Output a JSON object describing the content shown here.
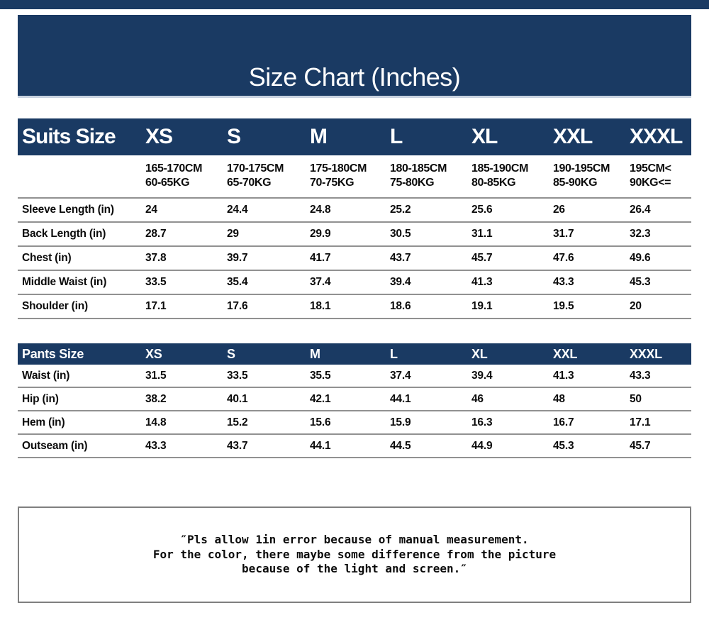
{
  "page": {
    "title": "Size Chart (Inches)"
  },
  "colors": {
    "navy": "#1a3a63",
    "separator": "#919191",
    "note_border": "#7f7f7f"
  },
  "suits_table": {
    "header_label": "Suits Size",
    "sizes": [
      "XS",
      "S",
      "M",
      "L",
      "XL",
      "XXL",
      "XXXL"
    ],
    "ranges": [
      {
        "height": "165-170CM",
        "weight": "60-65KG"
      },
      {
        "height": "170-175CM",
        "weight": "65-70KG"
      },
      {
        "height": "175-180CM",
        "weight": "70-75KG"
      },
      {
        "height": "180-185CM",
        "weight": "75-80KG"
      },
      {
        "height": "185-190CM",
        "weight": "80-85KG"
      },
      {
        "height": "190-195CM",
        "weight": "85-90KG"
      },
      {
        "height": "195CM<",
        "weight": "90KG<="
      }
    ],
    "rows": [
      {
        "label": "Sleeve Length (in)",
        "values": [
          "24",
          "24.4",
          "24.8",
          "25.2",
          "25.6",
          "26",
          "26.4"
        ]
      },
      {
        "label": "Back Length (in)",
        "values": [
          "28.7",
          "29",
          "29.9",
          "30.5",
          "31.1",
          "31.7",
          "32.3"
        ]
      },
      {
        "label": "Chest (in)",
        "values": [
          "37.8",
          "39.7",
          "41.7",
          "43.7",
          "45.7",
          "47.6",
          "49.6"
        ]
      },
      {
        "label": "Middle Waist (in)",
        "values": [
          "33.5",
          "35.4",
          "37.4",
          "39.4",
          "41.3",
          "43.3",
          "45.3"
        ]
      },
      {
        "label": "Shoulder (in)",
        "values": [
          "17.1",
          "17.6",
          "18.1",
          "18.6",
          "19.1",
          "19.5",
          "20"
        ]
      }
    ]
  },
  "pants_table": {
    "header_label": "Pants Size",
    "sizes": [
      "XS",
      "S",
      "M",
      "L",
      "XL",
      "XXL",
      "XXXL"
    ],
    "rows": [
      {
        "label": "Waist (in)",
        "values": [
          "31.5",
          "33.5",
          "35.5",
          "37.4",
          "39.4",
          "41.3",
          "43.3"
        ]
      },
      {
        "label": "Hip (in)",
        "values": [
          "38.2",
          "40.1",
          "42.1",
          "44.1",
          "46",
          "48",
          "50"
        ]
      },
      {
        "label": "Hem (in)",
        "values": [
          "14.8",
          "15.2",
          "15.6",
          "15.9",
          "16.3",
          "16.7",
          "17.1"
        ]
      },
      {
        "label": "Outseam (in)",
        "values": [
          "43.3",
          "43.7",
          "44.1",
          "44.5",
          "44.9",
          "45.3",
          "45.7"
        ]
      }
    ]
  },
  "note": {
    "lines": [
      "″Pls allow 1in error because of manual measurement.",
      "For the color, there maybe some difference from the picture",
      "because of the light and screen.″"
    ]
  }
}
